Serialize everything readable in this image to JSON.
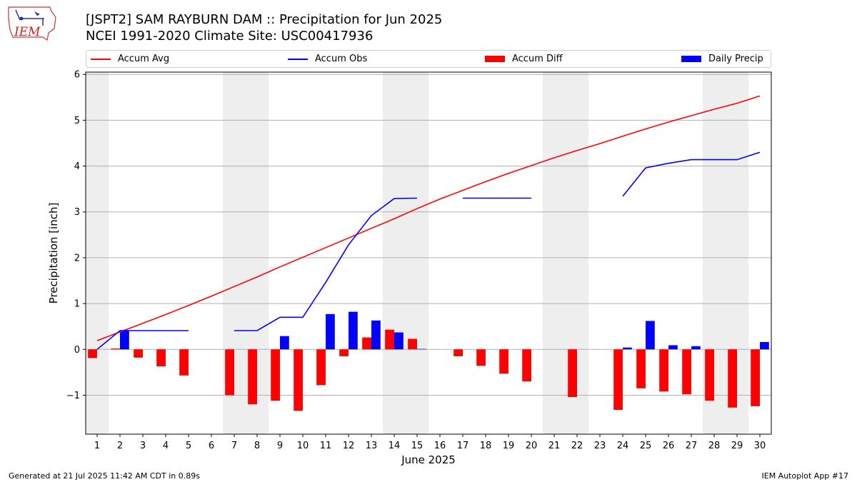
{
  "header": {
    "title_line1": "[JSPT2] SAM RAYBURN DAM :: Precipitation for Jun 2025",
    "title_line2": "NCEI 1991-2020 Climate Site: USC00417936",
    "logo_text": "IEM"
  },
  "footer": {
    "left": "Generated at 21 Jul 2025 11:42 AM CDT in 0.89s",
    "right": "IEM Autoplot App #17"
  },
  "legend": [
    {
      "label": "Accum Avg",
      "kind": "line",
      "color": "#ff0000"
    },
    {
      "label": "Accum Obs",
      "kind": "line",
      "color": "#0000ff"
    },
    {
      "label": "Accum Diff",
      "kind": "bar",
      "color": "#ff0000"
    },
    {
      "label": "Daily Precip",
      "kind": "bar",
      "color": "#0000ff"
    }
  ],
  "chart_data": {
    "type": "bar",
    "xlabel": "June 2025",
    "ylabel": "Precipitation [inch]",
    "xlim": [
      0.5,
      30.5
    ],
    "ylim": [
      -1.85,
      6.05
    ],
    "yticks": [
      -1,
      0,
      1,
      2,
      3,
      4,
      5,
      6
    ],
    "ytick_labels": [
      "−1",
      "0",
      "1",
      "2",
      "3",
      "4",
      "5",
      "6"
    ],
    "xticks": [
      1,
      2,
      3,
      4,
      5,
      6,
      7,
      8,
      9,
      10,
      11,
      12,
      13,
      14,
      15,
      16,
      17,
      18,
      19,
      20,
      21,
      22,
      23,
      24,
      25,
      26,
      27,
      28,
      29,
      30
    ],
    "grid": "horizontal",
    "weekend_shading": [
      [
        0.5,
        1.5
      ],
      [
        6.5,
        8.5
      ],
      [
        13.5,
        15.5
      ],
      [
        20.5,
        22.5
      ],
      [
        27.5,
        29.5
      ]
    ],
    "colors": {
      "avg": "#ff0000",
      "obs": "#0000ff",
      "diff": "#ff0000",
      "daily": "#0000ff",
      "shade": "#eeeeee"
    },
    "series": [
      {
        "name": "Accum Avg",
        "type": "line",
        "values": [
          0.19,
          0.38,
          0.57,
          0.76,
          0.96,
          1.16,
          1.37,
          1.58,
          1.8,
          2.01,
          2.22,
          2.43,
          2.64,
          2.85,
          3.07,
          3.28,
          3.47,
          3.66,
          3.84,
          4.01,
          4.18,
          4.34,
          4.49,
          4.65,
          4.81,
          4.96,
          5.1,
          5.24,
          5.37,
          5.53
        ]
      },
      {
        "name": "Accum Obs",
        "type": "line",
        "values": [
          0.0,
          0.41,
          0.41,
          0.41,
          0.41,
          null,
          0.41,
          0.41,
          0.7,
          0.7,
          1.46,
          2.28,
          2.92,
          3.29,
          3.3,
          null,
          3.3,
          3.3,
          3.3,
          3.3,
          null,
          null,
          null,
          3.34,
          3.96,
          4.06,
          4.14,
          4.14,
          4.14,
          4.3
        ]
      },
      {
        "name": "Accum Diff",
        "type": "bar",
        "values": [
          -0.19,
          0.02,
          -0.18,
          -0.37,
          -0.57,
          null,
          -1.0,
          -1.2,
          -1.12,
          -1.34,
          -0.78,
          -0.15,
          0.26,
          0.43,
          0.23,
          null,
          -0.15,
          -0.36,
          -0.53,
          -0.7,
          null,
          -1.04,
          null,
          -1.32,
          -0.85,
          -0.92,
          -0.98,
          -1.12,
          -1.27,
          -1.24
        ]
      },
      {
        "name": "Daily Precip",
        "type": "bar",
        "values": [
          0.0,
          0.41,
          0.0,
          0.0,
          0.0,
          null,
          0.0,
          0.0,
          0.29,
          0.0,
          0.77,
          0.82,
          0.63,
          0.37,
          0.01,
          null,
          0.0,
          0.0,
          0.0,
          0.0,
          null,
          0.0,
          null,
          0.04,
          0.62,
          0.09,
          0.07,
          0.0,
          0.0,
          0.16
        ]
      }
    ]
  }
}
